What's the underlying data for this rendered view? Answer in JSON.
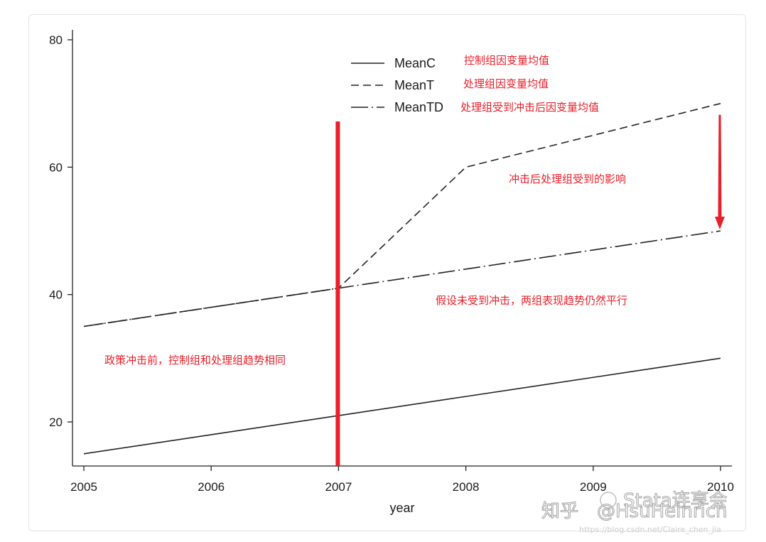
{
  "chart_data": {
    "type": "line",
    "title": "",
    "xlabel": "year",
    "ylabel": "",
    "x": [
      2005,
      2006,
      2007,
      2008,
      2009,
      2010
    ],
    "x_ticks": [
      "2005",
      "2006",
      "2007",
      "2008",
      "2009",
      "2010"
    ],
    "y_ticks": [
      "20",
      "40",
      "60",
      "80"
    ],
    "xlim": [
      2005,
      2010
    ],
    "ylim": [
      13.5,
      81
    ],
    "grid": false,
    "legend_position": "top-center",
    "series": [
      {
        "name": "MeanC",
        "style": "solid",
        "values": [
          15,
          18,
          21,
          24,
          27,
          30
        ],
        "legend_note": "控制组因变量均值"
      },
      {
        "name": "MeanT",
        "style": "dashed",
        "values": [
          35,
          38,
          41,
          60,
          65,
          70
        ],
        "legend_note": "处理组因变量均值"
      },
      {
        "name": "MeanTD",
        "style": "dashdot",
        "values": [
          35,
          38,
          41,
          44,
          47,
          50
        ],
        "legend_note": "处理组受到冲击后因变量均值"
      }
    ],
    "reference_line": {
      "x": 2007,
      "color": "#e8202a"
    },
    "arrow": {
      "x": 2010,
      "from": 70,
      "to": 50,
      "color": "#e8202a"
    },
    "annotations": [
      {
        "id": "impact",
        "text": "冲击后处理组受到的影响",
        "color": "#e8202a"
      },
      {
        "id": "assumption",
        "text": "假设未受到冲击，两组表现趋势仍然平行",
        "color": "#e8202a"
      },
      {
        "id": "before",
        "text": "政策冲击前，控制组和处理组趋势相同",
        "color": "#e8202a"
      }
    ]
  },
  "watermark": {
    "brand": "知乎",
    "handle": "@HsuHeinrich",
    "account": "Stata连享会",
    "url": "https://blog.csdn.net/Claire_chen_jia"
  }
}
